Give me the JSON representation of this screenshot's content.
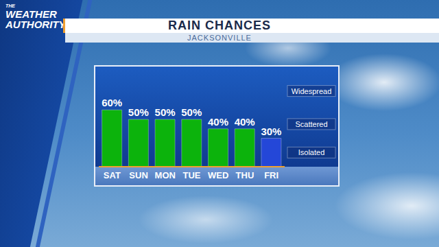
{
  "chart_data": {
    "type": "bar",
    "title": "RAIN CHANCES",
    "subtitle": "JACKSONVILLE",
    "logo": "THE WEATHER AUTHORITY",
    "categories": [
      "SAT",
      "SUN",
      "MON",
      "TUE",
      "WED",
      "THU",
      "FRI"
    ],
    "values": [
      60,
      50,
      50,
      50,
      40,
      40,
      30
    ],
    "value_labels": [
      "60%",
      "50%",
      "50%",
      "50%",
      "40%",
      "40%",
      "30%"
    ],
    "colors": [
      "#0cb30c",
      "#0cb30c",
      "#0cb30c",
      "#0cb30c",
      "#0cb30c",
      "#0cb30c",
      "#2447d8"
    ],
    "ylim": [
      0,
      100
    ],
    "yticks": [
      0,
      30,
      60,
      100
    ],
    "grid": true,
    "data_labels": true,
    "tick_labels": "x",
    "bands": [
      {
        "label": "Isolated",
        "from": 0,
        "to": 30
      },
      {
        "label": "Scattered",
        "from": 30,
        "to": 60
      },
      {
        "label": "Widespread",
        "from": 60,
        "to": 100
      }
    ]
  }
}
